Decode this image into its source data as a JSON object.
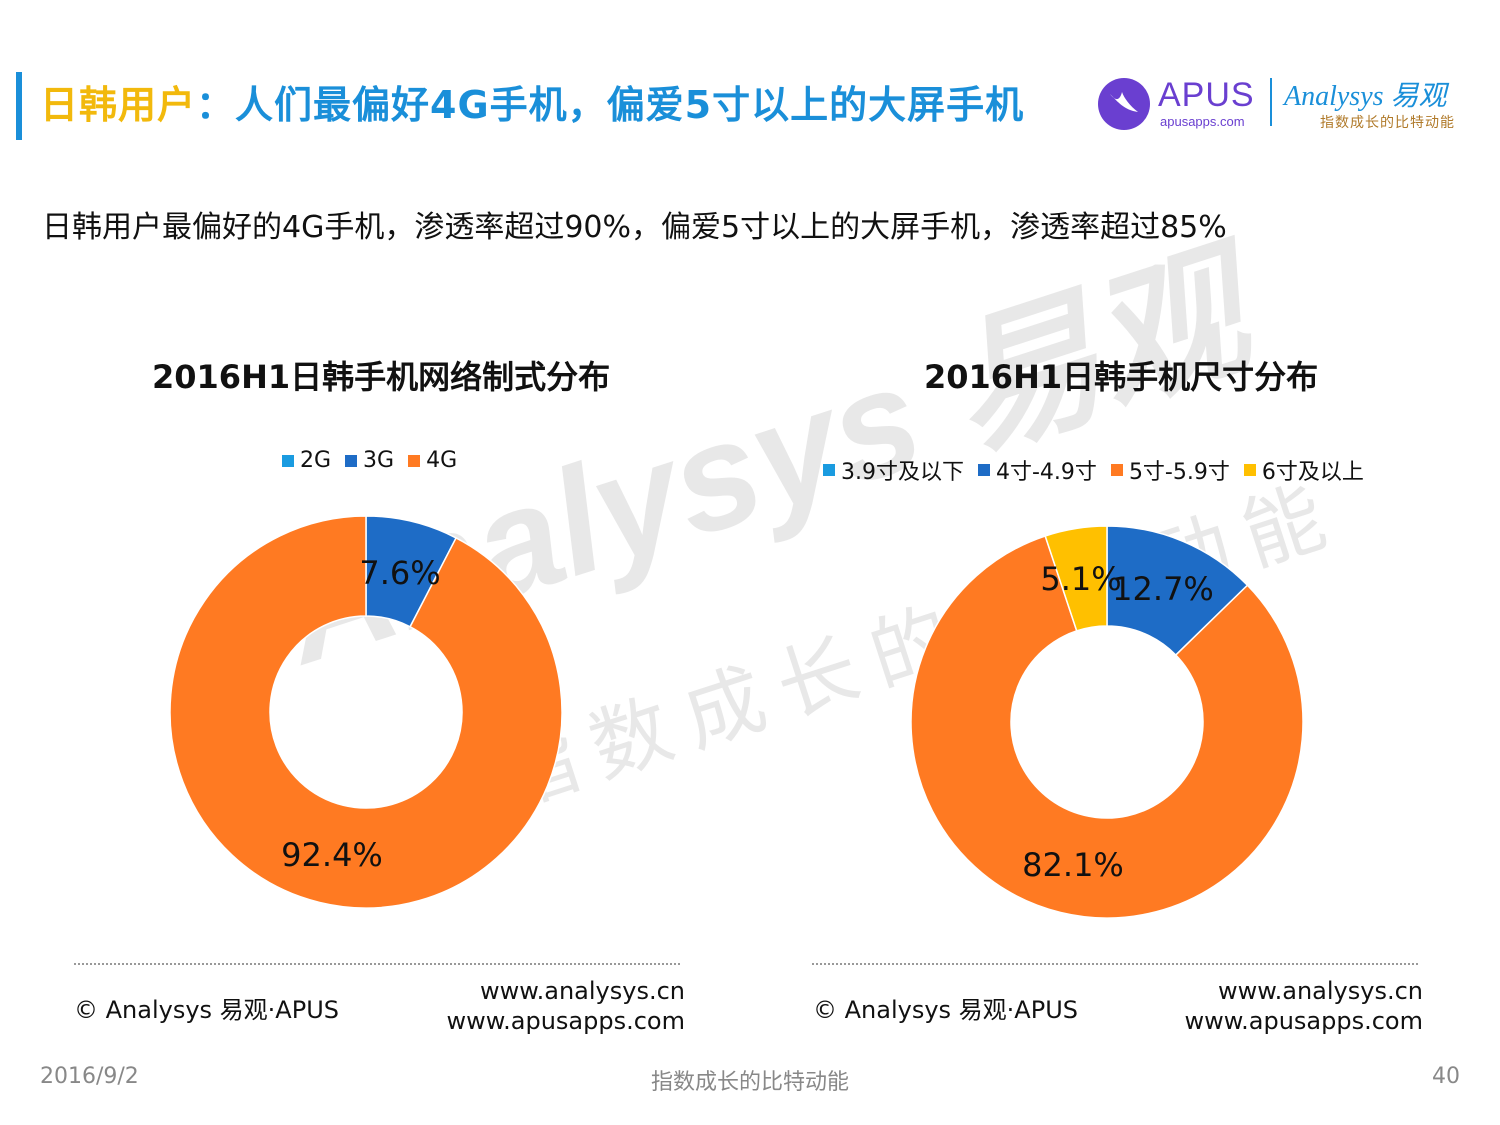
{
  "header": {
    "title_part1": "日韩用户",
    "title_part2": "：人们最偏好4G手机，偏爱5寸以上的大屏手机",
    "apus_logo_text": "APUS",
    "apus_logo_sub": "apusapps.com",
    "analysys_logo_text": "Analysys 易观",
    "analysys_logo_sub": "指数成长的比特动能"
  },
  "subtitle": "日韩用户最偏好的4G手机，渗透率超过90%，偏爱5寸以上的大屏手机，渗透率超过85%",
  "watermark": {
    "brand": "Analysys 易观",
    "slogan": "指数成长的比特动能"
  },
  "colors": {
    "blue_light": "#1a9be0",
    "blue_dark": "#1e6cc6",
    "orange": "#ff7a22",
    "yellow": "#ffc000",
    "accent": "#1a8fd9"
  },
  "chart_data": [
    {
      "type": "pie",
      "title": "2016H1日韩手机网络制式分布",
      "categories": [
        "2G",
        "3G",
        "4G"
      ],
      "values": [
        0,
        7.6,
        92.4
      ],
      "labels": [
        "",
        "7.6%",
        "92.4%"
      ],
      "colors": [
        "#1a9be0",
        "#1e6cc6",
        "#ff7a22"
      ],
      "legend": "top"
    },
    {
      "type": "pie",
      "title": "2016H1日韩手机尺寸分布",
      "categories": [
        "3.9寸及以下",
        "4寸-4.9寸",
        "5寸-5.9寸",
        "6寸及以上"
      ],
      "values": [
        0,
        12.7,
        82.1,
        5.1
      ],
      "labels": [
        "",
        "12.7%",
        "82.1%",
        "5.1%"
      ],
      "colors": [
        "#1a9be0",
        "#1e6cc6",
        "#ff7a22",
        "#ffc000"
      ],
      "legend": "top"
    }
  ],
  "footer": {
    "copyright": "© Analysys 易观·APUS",
    "url1": "www.analysys.cn",
    "url2": "www.apusapps.com"
  },
  "page": {
    "date": "2016/9/2",
    "slogan": "指数成长的比特动能",
    "number": "40"
  }
}
